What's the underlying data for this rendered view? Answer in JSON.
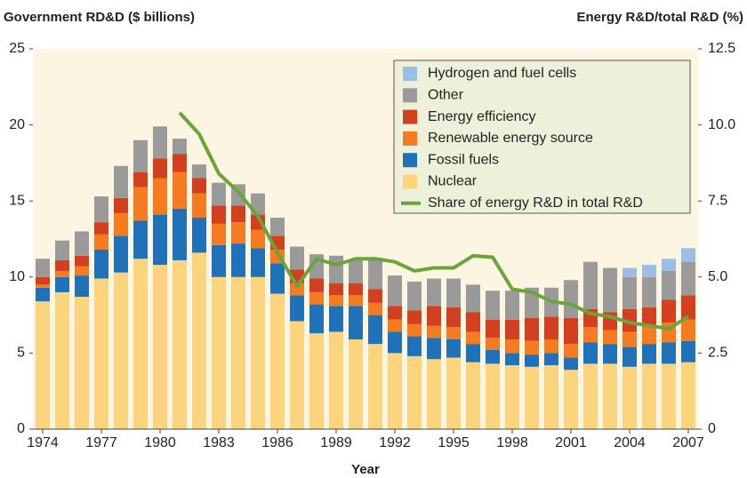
{
  "chart_data": {
    "type": "bar",
    "ylabel": "Government RD&D ($ billions)",
    "y2label": "Energy R&D/total R&D (%)",
    "xlabel": "Year",
    "categories": [
      "1974",
      null,
      null,
      "1977",
      null,
      null,
      "1980",
      null,
      null,
      "1983",
      null,
      null,
      "1986",
      null,
      null,
      "1989",
      null,
      null,
      "1992",
      null,
      null,
      "1995",
      null,
      null,
      "1998",
      null,
      null,
      "2001",
      null,
      null,
      "2004",
      null,
      null,
      "2007"
    ],
    "ylim": [
      0,
      25
    ],
    "yticks": [
      0,
      5,
      10,
      15,
      20,
      25
    ],
    "y2lim": [
      0,
      12.5
    ],
    "y2ticks": [
      0,
      2.5,
      {
        "value": 5,
        "label": "5.0"
      },
      7.5,
      {
        "value": 10,
        "label": "10.0"
      },
      12.5
    ],
    "legend": "upper right",
    "series": [
      {
        "name": "Nuclear",
        "color": "#fdd47e",
        "values": [
          8.4,
          9.0,
          8.7,
          9.9,
          10.3,
          11.2,
          10.8,
          11.1,
          11.6,
          10.0,
          10.0,
          10.0,
          8.9,
          7.1,
          6.3,
          6.4,
          5.9,
          5.6,
          5.0,
          4.8,
          4.6,
          4.7,
          4.4,
          4.3,
          4.2,
          4.1,
          4.2,
          3.9,
          4.3,
          4.3,
          4.1,
          4.3,
          4.3,
          4.4
        ]
      },
      {
        "name": "Fossil fuels",
        "color": "#1f72b8",
        "values": [
          0.9,
          1.0,
          1.4,
          1.9,
          2.4,
          2.5,
          3.3,
          3.4,
          2.3,
          2.1,
          2.2,
          1.9,
          2.0,
          1.7,
          1.9,
          1.7,
          2.2,
          1.9,
          1.4,
          1.3,
          1.4,
          1.2,
          1.2,
          0.9,
          0.8,
          0.8,
          0.8,
          0.8,
          1.4,
          1.3,
          1.3,
          1.3,
          1.4,
          1.4
        ]
      },
      {
        "name": "Renewable energy source",
        "color": "#f47b20",
        "values": [
          0.2,
          0.4,
          0.6,
          1.0,
          1.5,
          2.2,
          2.4,
          2.4,
          1.6,
          1.4,
          1.4,
          1.2,
          0.9,
          0.8,
          0.8,
          0.7,
          0.7,
          0.8,
          0.8,
          0.8,
          0.8,
          0.8,
          0.8,
          0.8,
          0.9,
          0.9,
          0.9,
          0.9,
          1.0,
          0.9,
          1.0,
          1.2,
          1.3,
          1.4
        ]
      },
      {
        "name": "Energy efficiency",
        "color": "#d2401f",
        "values": [
          0.5,
          0.7,
          0.7,
          0.8,
          1.0,
          1.0,
          1.3,
          1.2,
          1.0,
          1.2,
          1.1,
          1.0,
          0.9,
          0.9,
          0.9,
          0.8,
          0.8,
          0.9,
          0.9,
          0.9,
          1.3,
          1.3,
          1.3,
          1.2,
          1.3,
          1.5,
          1.5,
          1.7,
          1.2,
          1.2,
          1.5,
          1.2,
          1.5,
          1.6
        ]
      },
      {
        "name": "Other",
        "color": "#9a9a9a",
        "values": [
          1.2,
          1.3,
          1.6,
          1.7,
          2.1,
          2.1,
          2.1,
          1.0,
          0.9,
          1.5,
          1.4,
          1.4,
          1.2,
          1.5,
          1.6,
          1.8,
          1.5,
          1.9,
          2.0,
          1.9,
          1.8,
          1.9,
          1.8,
          1.9,
          1.9,
          2.0,
          1.9,
          2.5,
          3.1,
          2.9,
          2.1,
          2.0,
          1.9,
          2.2
        ]
      },
      {
        "name": "Hydrogen and fuel cells",
        "color": "#9cbde6",
        "values": [
          0,
          0,
          0,
          0,
          0,
          0,
          0,
          0,
          0,
          0,
          0,
          0,
          0,
          0,
          0,
          0,
          0,
          0,
          0,
          0,
          0,
          0,
          0,
          0,
          0,
          0,
          0,
          0,
          0,
          0,
          0.6,
          0.8,
          0.8,
          0.9
        ]
      },
      {
        "name": "Share of energy R&D in total R&D",
        "color": "#6aa43a",
        "axis": "y2",
        "type": "line",
        "values": [
          null,
          null,
          null,
          null,
          null,
          null,
          null,
          10.4,
          9.7,
          8.4,
          7.8,
          7.0,
          5.8,
          4.7,
          5.6,
          5.4,
          5.6,
          5.6,
          5.5,
          5.2,
          5.3,
          5.3,
          5.7,
          5.65,
          4.6,
          4.5,
          4.2,
          4.1,
          3.8,
          3.7,
          3.5,
          3.4,
          3.3,
          3.7
        ]
      }
    ]
  }
}
